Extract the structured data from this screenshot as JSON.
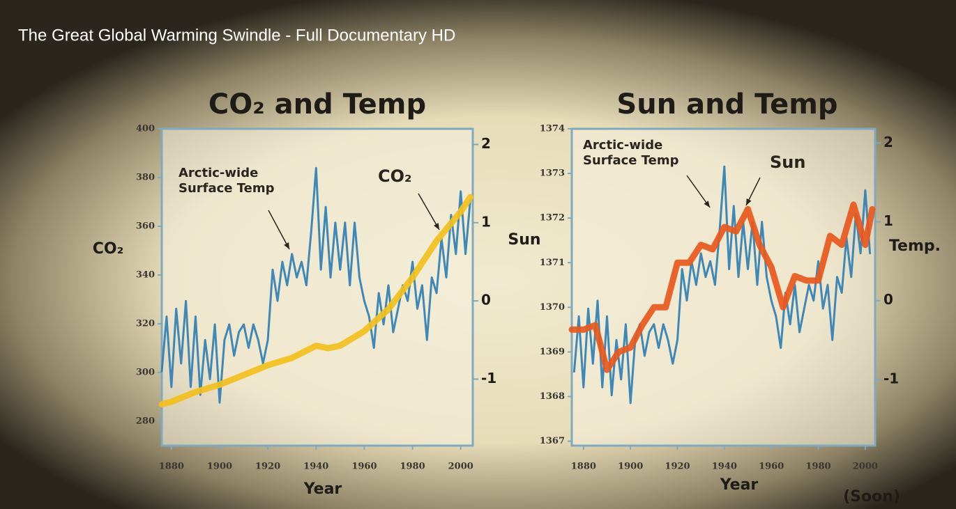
{
  "video_title": "The Great Global Warming Swindle - Full Documentary HD",
  "source_note": "(Soon)",
  "chart_data": [
    {
      "type": "line",
      "title": "CO₂ and Temp",
      "x_label": "Year",
      "y_label": "CO₂",
      "xlim": [
        1876,
        2005
      ],
      "xticks": [
        1880,
        1900,
        1920,
        1940,
        1960,
        1980,
        2000
      ],
      "ylim": [
        270,
        400
      ],
      "yticks": [
        280,
        300,
        320,
        340,
        360,
        380,
        400
      ],
      "y2lim": [
        -1.85,
        2.2
      ],
      "y2ticks": [
        -1,
        0,
        1,
        2
      ],
      "series": [
        {
          "name": "Arctic-wide Surface Temp",
          "color": "#2f7fb5",
          "axis": "y2",
          "x": [
            1876,
            1878,
            1880,
            1882,
            1884,
            1886,
            1888,
            1890,
            1892,
            1894,
            1896,
            1898,
            1900,
            1902,
            1904,
            1906,
            1908,
            1910,
            1912,
            1914,
            1916,
            1918,
            1920,
            1922,
            1924,
            1926,
            1928,
            1930,
            1932,
            1934,
            1936,
            1938,
            1940,
            1942,
            1944,
            1946,
            1948,
            1950,
            1952,
            1954,
            1956,
            1958,
            1960,
            1962,
            1964,
            1966,
            1968,
            1970,
            1972,
            1974,
            1976,
            1978,
            1980,
            1982,
            1984,
            1986,
            1988,
            1990,
            1992,
            1994,
            1996,
            1998,
            2000,
            2002,
            2004
          ],
          "values": [
            -0.9,
            -0.2,
            -1.1,
            -0.1,
            -0.8,
            0.0,
            -1.1,
            -0.2,
            -1.2,
            -0.5,
            -1.0,
            -0.3,
            -1.3,
            -0.5,
            -0.3,
            -0.7,
            -0.4,
            -0.3,
            -0.6,
            -0.3,
            -0.5,
            -0.8,
            -0.5,
            0.4,
            0.0,
            0.5,
            0.2,
            0.6,
            0.3,
            0.5,
            0.2,
            0.9,
            1.7,
            0.4,
            1.2,
            0.3,
            1.0,
            0.4,
            1.0,
            0.2,
            1.0,
            0.3,
            0.0,
            -0.2,
            -0.6,
            0.1,
            -0.3,
            0.2,
            -0.4,
            -0.1,
            0.2,
            0.0,
            0.5,
            -0.1,
            0.2,
            -0.5,
            0.3,
            0.1,
            0.8,
            0.3,
            1.1,
            0.6,
            1.4,
            0.6,
            1.3
          ]
        },
        {
          "name": "CO₂",
          "color": "#f2c01a",
          "axis": "y",
          "x": [
            1876,
            1880,
            1890,
            1900,
            1910,
            1920,
            1930,
            1940,
            1945,
            1950,
            1960,
            1970,
            1980,
            1990,
            2000,
            2004
          ],
          "values": [
            287,
            288,
            292,
            295,
            299,
            303,
            306,
            311,
            310,
            311,
            317,
            326,
            339,
            354,
            366,
            372
          ]
        }
      ]
    },
    {
      "type": "line",
      "title": "Sun and Temp",
      "x_label": "Year",
      "y_label": "Sun",
      "y2_label": "Temp.",
      "xlim": [
        1875,
        2004.2
      ],
      "xticks": [
        1880,
        1900,
        1920,
        1940,
        1960,
        1980,
        2000
      ],
      "ylim": [
        1366.9,
        1374
      ],
      "yticks": [
        1367,
        1368,
        1369,
        1370,
        1371,
        1372,
        1373,
        1374
      ],
      "y2lim": [
        -1.84,
        2.18
      ],
      "y2ticks": [
        -1,
        0,
        1,
        2
      ],
      "series": [
        {
          "name": "Arctic-wide Surface Temp",
          "color": "#2f7fb5",
          "axis": "y2",
          "x": [
            1876,
            1878,
            1880,
            1882,
            1884,
            1886,
            1888,
            1890,
            1892,
            1894,
            1896,
            1898,
            1900,
            1902,
            1904,
            1906,
            1908,
            1910,
            1912,
            1914,
            1916,
            1918,
            1920,
            1922,
            1924,
            1926,
            1928,
            1930,
            1932,
            1934,
            1936,
            1938,
            1940,
            1942,
            1944,
            1946,
            1948,
            1950,
            1952,
            1954,
            1956,
            1958,
            1960,
            1962,
            1964,
            1966,
            1968,
            1970,
            1972,
            1974,
            1976,
            1978,
            1980,
            1982,
            1984,
            1986,
            1988,
            1990,
            1992,
            1994,
            1996,
            1998,
            2000,
            2002
          ],
          "values": [
            -0.9,
            -0.2,
            -1.1,
            -0.1,
            -0.8,
            0.0,
            -1.1,
            -0.2,
            -1.2,
            -0.5,
            -1.0,
            -0.3,
            -1.3,
            -0.5,
            -0.3,
            -0.7,
            -0.4,
            -0.3,
            -0.6,
            -0.3,
            -0.5,
            -0.8,
            -0.5,
            0.4,
            0.0,
            0.5,
            0.2,
            0.6,
            0.3,
            0.5,
            0.2,
            0.9,
            1.7,
            0.4,
            1.2,
            0.3,
            1.0,
            0.4,
            1.0,
            0.2,
            1.0,
            0.3,
            0.0,
            -0.2,
            -0.6,
            0.1,
            -0.3,
            0.2,
            -0.4,
            -0.1,
            0.2,
            0.0,
            0.5,
            -0.1,
            0.2,
            -0.5,
            0.3,
            0.1,
            0.8,
            0.3,
            1.1,
            0.6,
            1.4,
            0.6
          ]
        },
        {
          "name": "Sun",
          "color": "#e8571c",
          "axis": "y",
          "x": [
            1875,
            1880,
            1885,
            1890,
            1895,
            1900,
            1905,
            1910,
            1915,
            1920,
            1925,
            1930,
            1935,
            1940,
            1945,
            1950,
            1955,
            1960,
            1965,
            1970,
            1975,
            1980,
            1985,
            1990,
            1995,
            2000,
            2003
          ],
          "values": [
            1369.5,
            1369.5,
            1369.6,
            1368.6,
            1369.0,
            1369.1,
            1369.6,
            1370.0,
            1370.0,
            1371.0,
            1371.0,
            1371.4,
            1371.3,
            1371.8,
            1371.7,
            1372.2,
            1371.4,
            1370.9,
            1370.0,
            1370.7,
            1370.6,
            1370.6,
            1371.6,
            1371.4,
            1372.3,
            1371.4,
            1372.2
          ]
        }
      ]
    }
  ]
}
